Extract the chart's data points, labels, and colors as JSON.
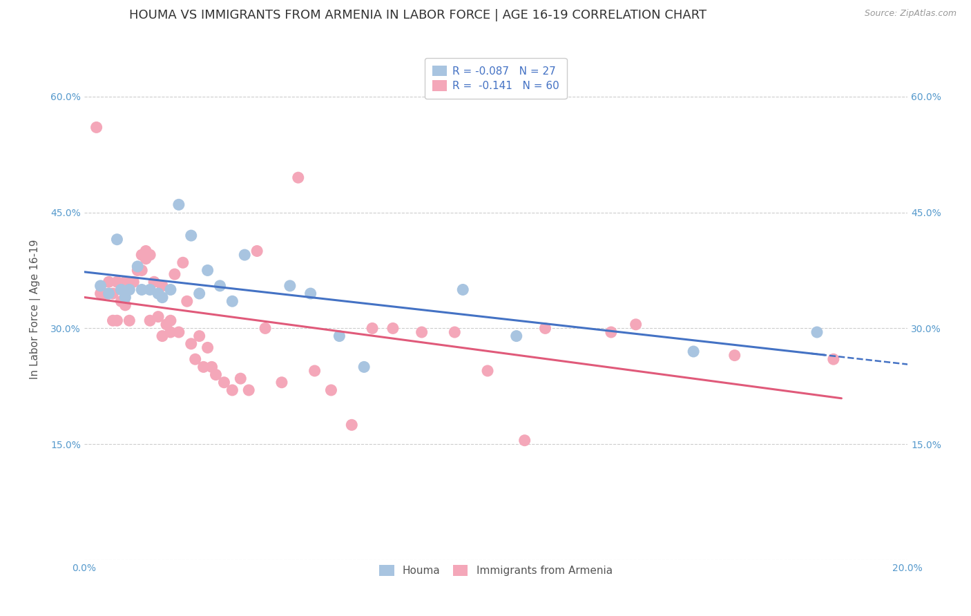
{
  "title": "HOUMA VS IMMIGRANTS FROM ARMENIA IN LABOR FORCE | AGE 16-19 CORRELATION CHART",
  "source": "Source: ZipAtlas.com",
  "ylabel": "In Labor Force | Age 16-19",
  "xlim": [
    0.0,
    0.2
  ],
  "ylim": [
    0.0,
    0.65
  ],
  "x_ticks": [
    0.0,
    0.04,
    0.08,
    0.12,
    0.16,
    0.2
  ],
  "x_tick_labels": [
    "0.0%",
    "",
    "",
    "",
    "",
    "20.0%"
  ],
  "y_ticks": [
    0.0,
    0.15,
    0.3,
    0.45,
    0.6
  ],
  "y_tick_labels": [
    "",
    "15.0%",
    "30.0%",
    "45.0%",
    "60.0%"
  ],
  "legend1_r": "-0.087",
  "legend1_n": "27",
  "legend2_r": "-0.141",
  "legend2_n": "60",
  "houma_color": "#a8c4e0",
  "armenia_color": "#f4a7b9",
  "trend_blue": "#4472c4",
  "trend_pink": "#e05a7a",
  "background_color": "#ffffff",
  "grid_color": "#cccccc",
  "houma_x": [
    0.004,
    0.006,
    0.008,
    0.009,
    0.01,
    0.011,
    0.013,
    0.014,
    0.016,
    0.018,
    0.019,
    0.021,
    0.023,
    0.026,
    0.028,
    0.03,
    0.033,
    0.036,
    0.039,
    0.05,
    0.055,
    0.062,
    0.068,
    0.092,
    0.105,
    0.148,
    0.178
  ],
  "houma_y": [
    0.355,
    0.345,
    0.415,
    0.35,
    0.34,
    0.35,
    0.38,
    0.35,
    0.35,
    0.345,
    0.34,
    0.35,
    0.46,
    0.42,
    0.345,
    0.375,
    0.355,
    0.335,
    0.395,
    0.355,
    0.345,
    0.29,
    0.25,
    0.35,
    0.29,
    0.27,
    0.295
  ],
  "armenia_x": [
    0.003,
    0.004,
    0.005,
    0.006,
    0.007,
    0.007,
    0.008,
    0.008,
    0.009,
    0.01,
    0.01,
    0.011,
    0.012,
    0.013,
    0.014,
    0.014,
    0.015,
    0.015,
    0.016,
    0.016,
    0.017,
    0.018,
    0.019,
    0.019,
    0.02,
    0.021,
    0.021,
    0.022,
    0.023,
    0.024,
    0.025,
    0.026,
    0.027,
    0.028,
    0.029,
    0.03,
    0.031,
    0.032,
    0.034,
    0.036,
    0.038,
    0.04,
    0.042,
    0.044,
    0.048,
    0.052,
    0.056,
    0.06,
    0.065,
    0.07,
    0.075,
    0.082,
    0.09,
    0.098,
    0.107,
    0.112,
    0.128,
    0.134,
    0.158,
    0.182
  ],
  "armenia_y": [
    0.56,
    0.345,
    0.345,
    0.36,
    0.345,
    0.31,
    0.31,
    0.36,
    0.335,
    0.33,
    0.36,
    0.31,
    0.36,
    0.375,
    0.395,
    0.375,
    0.39,
    0.4,
    0.395,
    0.31,
    0.36,
    0.315,
    0.29,
    0.355,
    0.305,
    0.295,
    0.31,
    0.37,
    0.295,
    0.385,
    0.335,
    0.28,
    0.26,
    0.29,
    0.25,
    0.275,
    0.25,
    0.24,
    0.23,
    0.22,
    0.235,
    0.22,
    0.4,
    0.3,
    0.23,
    0.495,
    0.245,
    0.22,
    0.175,
    0.3,
    0.3,
    0.295,
    0.295,
    0.245,
    0.155,
    0.3,
    0.295,
    0.305,
    0.265,
    0.26
  ],
  "title_fontsize": 13,
  "label_fontsize": 11,
  "tick_fontsize": 10,
  "legend_fontsize": 11
}
